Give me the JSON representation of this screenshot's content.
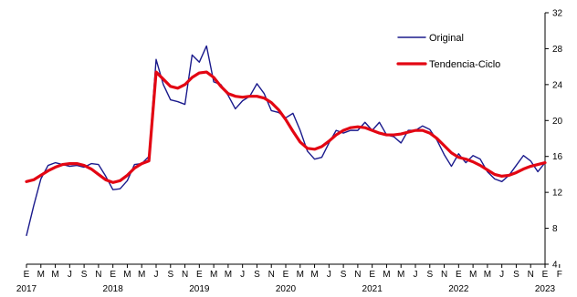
{
  "chart_data": {
    "type": "line",
    "title": "",
    "xlabel": "",
    "ylabel": "",
    "ylim": [
      4,
      32
    ],
    "y_ticks": [
      4,
      8,
      12,
      16,
      20,
      24,
      28,
      32
    ],
    "y_axis_side": "right",
    "grid": false,
    "legend_placement": "top-right",
    "month_tick_labels": [
      "E",
      "M",
      "M",
      "J",
      "S",
      "N",
      "E",
      "M",
      "M",
      "J",
      "S",
      "N",
      "E",
      "M",
      "M",
      "J",
      "S",
      "N",
      "E",
      "M",
      "M",
      "J",
      "S",
      "N",
      "E",
      "M",
      "M",
      "J",
      "S",
      "N",
      "E",
      "M",
      "M",
      "J",
      "S",
      "N",
      "E",
      "F"
    ],
    "year_labels": [
      "2017",
      "2018",
      "2019",
      "2020",
      "2021",
      "2022",
      "2023"
    ],
    "series": [
      {
        "name": "Original",
        "color": "#1a1a8c",
        "values": [
          7.2,
          10.5,
          13.5,
          15.0,
          15.3,
          15.1,
          14.9,
          15.0,
          14.8,
          15.2,
          15.1,
          13.8,
          12.3,
          12.4,
          13.3,
          15.1,
          15.2,
          16.0,
          26.8,
          24.0,
          22.3,
          22.1,
          21.8,
          27.3,
          26.5,
          28.3,
          24.3,
          24.0,
          22.8,
          21.3,
          22.2,
          22.7,
          24.1,
          23.0,
          21.1,
          20.9,
          20.3,
          20.8,
          18.9,
          16.6,
          15.7,
          15.9,
          17.5,
          18.9,
          18.6,
          18.9,
          18.9,
          19.8,
          18.9,
          19.8,
          18.4,
          18.2,
          17.5,
          18.9,
          18.9,
          19.4,
          19.0,
          17.8,
          16.2,
          14.9,
          16.3,
          15.3,
          16.1,
          15.7,
          14.3,
          13.5,
          13.2,
          13.9,
          15.0,
          16.1,
          15.5,
          14.3,
          15.3
        ]
      },
      {
        "name": "Tendencia-Ciclo",
        "color": "#e30613",
        "values": [
          13.2,
          13.4,
          13.9,
          14.4,
          14.8,
          15.1,
          15.2,
          15.2,
          15.0,
          14.6,
          14.0,
          13.4,
          13.1,
          13.3,
          13.9,
          14.7,
          15.2,
          15.5,
          25.4,
          24.6,
          23.8,
          23.6,
          24.0,
          24.8,
          25.3,
          25.4,
          24.8,
          23.8,
          23.0,
          22.7,
          22.6,
          22.7,
          22.7,
          22.5,
          22.0,
          21.2,
          20.1,
          18.8,
          17.6,
          16.9,
          16.8,
          17.1,
          17.7,
          18.4,
          18.9,
          19.2,
          19.3,
          19.2,
          18.9,
          18.6,
          18.4,
          18.4,
          18.5,
          18.7,
          18.9,
          18.9,
          18.6,
          18.0,
          17.2,
          16.4,
          15.9,
          15.7,
          15.4,
          15.0,
          14.5,
          14.0,
          13.8,
          13.9,
          14.2,
          14.6,
          14.9,
          15.1,
          15.3
        ]
      }
    ]
  }
}
